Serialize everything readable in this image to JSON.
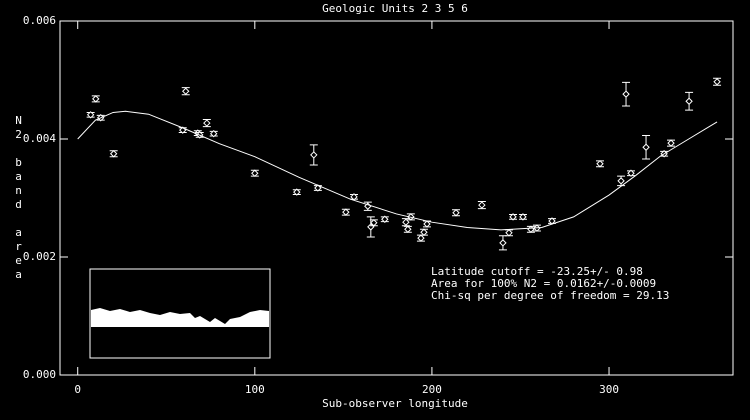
{
  "chart_data": {
    "type": "scatter",
    "title": "Geologic Units 2 3 5 6",
    "xlabel": "Sub-observer longitude",
    "ylabel": "N2 band area",
    "annotations": [
      "Latitude cutoff = -23.25+/-  0.98",
      "Area for 100% N2 = 0.0162+/-0.0009",
      "Chi-sq per degree of freedom = 29.13"
    ],
    "xlim": [
      -10,
      370
    ],
    "ylim": [
      0,
      0.006
    ],
    "xticks": [
      0,
      100,
      200,
      300
    ],
    "yticks": [
      {
        "value": 0,
        "label": "0.000"
      },
      {
        "value": 0.002,
        "label": "0.002"
      },
      {
        "value": 0.004,
        "label": "0.004"
      },
      {
        "value": 0.006,
        "label": "0.006"
      }
    ],
    "x": [
      7.3,
      10.2,
      13,
      20.3,
      61,
      59.3,
      67.8,
      68.9,
      72.9,
      76.8,
      100,
      123.7,
      133.3,
      135.6,
      156,
      151.4,
      163.8,
      165.5,
      167.2,
      173.4,
      185.3,
      186.4,
      188.1,
      193.8,
      195.5,
      197.2,
      213.6,
      228.2,
      240.1,
      243.5,
      245.8,
      251.4,
      255.9,
      259.3,
      267.8,
      294.9,
      306.8,
      312.4,
      309.6,
      320.9,
      331.1,
      335,
      345.2,
      361
    ],
    "series": [
      {
        "color": "#ffffff",
        "values": [
          0.00441,
          0.00468,
          0.00436,
          0.00375,
          0.00481,
          0.00415,
          0.0041,
          0.00407,
          0.00427,
          0.00409,
          0.00342,
          0.0031,
          0.00373,
          0.00317,
          0.00302,
          0.00276,
          0.00286,
          0.00251,
          0.00258,
          0.00264,
          0.00259,
          0.00247,
          0.00268,
          0.00232,
          0.00242,
          0.00256,
          0.00275,
          0.00288,
          0.00224,
          0.00241,
          0.00268,
          0.00268,
          0.00247,
          0.00249,
          0.00261,
          0.00358,
          0.00329,
          0.00342,
          0.00476,
          0.00386,
          0.00375,
          0.00393,
          0.00464,
          0.00497
        ],
        "errors": [
          4e-05,
          5e-05,
          4e-05,
          5e-05,
          6e-05,
          4e-05,
          4e-05,
          4e-05,
          6e-05,
          4e-05,
          5e-05,
          4e-05,
          0.00017,
          4e-05,
          4e-05,
          5e-05,
          7e-05,
          0.00017,
          5e-05,
          4e-05,
          6e-05,
          5e-05,
          5e-05,
          5e-05,
          5e-05,
          5e-05,
          5e-05,
          6e-05,
          0.00012,
          5e-05,
          4e-05,
          4e-05,
          5e-05,
          5e-05,
          4e-05,
          5e-05,
          8e-05,
          4e-05,
          0.0002,
          0.0002,
          4e-05,
          5e-05,
          0.00015,
          6e-05
        ]
      }
    ],
    "fit": {
      "color": "#ffffff",
      "x": [
        0,
        10,
        20,
        27,
        40,
        60,
        80,
        100,
        125,
        154,
        180,
        200,
        220,
        239,
        262,
        280,
        300,
        315,
        329,
        345,
        361
      ],
      "values": [
        0.004,
        0.00432,
        0.00445,
        0.00447,
        0.00442,
        0.00418,
        0.00392,
        0.0037,
        0.00335,
        0.00298,
        0.00273,
        0.00259,
        0.0025,
        0.00246,
        0.0025,
        0.00268,
        0.00305,
        0.00338,
        0.00371,
        0.004,
        0.00429
      ]
    }
  }
}
